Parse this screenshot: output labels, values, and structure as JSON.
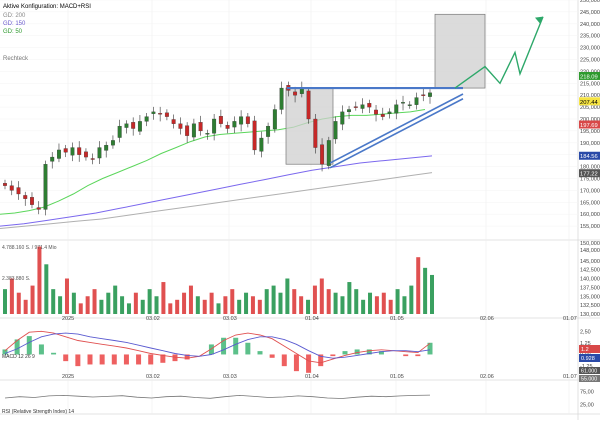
{
  "header": {
    "title": "Aktive Konfiguration: MACD+RSI",
    "ma_labels": [
      "GD: 200",
      "GD: 150",
      "GD: 50"
    ],
    "shape_label": "Rechteck"
  },
  "colors": {
    "up": "#2e7d32",
    "down": "#c62828",
    "ma50": "#5bd65b",
    "ma150": "#7b68ee",
    "ma200": "#b0b0b0",
    "trend": "#4a78c8",
    "macd": "#e05050",
    "signal": "#5a5ad0",
    "hist_pos": "#5cc08a",
    "hist_neg": "#ee6060",
    "vol_up": "#3aa060",
    "vol_down": "#e05050",
    "projection": "#2ea86a",
    "rect_fill": "#cfcfcf"
  },
  "chart_data": [
    {
      "type": "candlestick",
      "title": "Aktive Konfiguration: MACD+RSI",
      "x": [
        "2025",
        "03.02",
        "03.03",
        "01.04",
        "01.05",
        "02.06",
        "01.07"
      ],
      "ylim": [
        150,
        250
      ],
      "yticks": [
        155,
        160,
        165,
        170,
        175,
        180,
        185,
        190,
        195,
        200,
        205,
        210,
        215,
        220,
        225,
        230,
        235,
        240,
        245,
        250
      ],
      "close_path": [
        172,
        170,
        168.5,
        166.5,
        164,
        162,
        181,
        184,
        187,
        186,
        188,
        185,
        184,
        183,
        188,
        189,
        191,
        197,
        198,
        196,
        199,
        201,
        203,
        202,
        201,
        198,
        196,
        193,
        198,
        195,
        194,
        200,
        198,
        196,
        199,
        201,
        198,
        187,
        192,
        197,
        204,
        213,
        212,
        210,
        213,
        200,
        188,
        181,
        191,
        199,
        203,
        204,
        205,
        206,
        205,
        202,
        201,
        203,
        206,
        207,
        206,
        209,
        210,
        211
      ],
      "ma50_path": [
        160,
        160.5,
        161.5,
        163,
        165.5,
        168.5,
        172,
        175,
        177.5,
        180,
        182.5,
        185.5,
        188,
        190.5,
        192.5,
        193.5,
        194,
        194.5,
        195,
        195.5,
        196.5,
        198.5,
        200,
        201,
        201.5,
        201.5,
        202,
        202.5,
        203,
        204
      ],
      "ma150_path": [
        155,
        156,
        157.5,
        159,
        160.5,
        162.5,
        164.5,
        166.5,
        168.5,
        170.5,
        172.5,
        174.5,
        176.5,
        178.5,
        180,
        181.5,
        182.5,
        183.5,
        184.5
      ],
      "ma200_path": [
        154,
        155,
        156,
        157,
        158,
        159.5,
        161,
        162.5,
        164,
        165.5,
        167,
        168.5,
        170,
        171.5,
        173,
        174.5,
        176,
        177.5
      ],
      "price_labels": [
        "218.09",
        "207.44",
        "197.69",
        "184.56",
        "177.22"
      ],
      "rectangles": [
        {
          "role": "consolidation",
          "from": "01.04",
          "price_high": 213,
          "price_low": 181
        },
        {
          "role": "target",
          "price_high": 244,
          "price_low": 213
        }
      ],
      "projection_path": [
        213,
        222,
        215,
        228,
        219,
        243
      ]
    },
    {
      "type": "bar",
      "title": "Volume",
      "header_values": [
        "4.788.160 S. / 971.4 Mio",
        "2.383.880 S."
      ],
      "ylim": [
        130000,
        150000
      ],
      "yticks": [
        "130,000",
        "132,500",
        "135,000",
        "137,500",
        "140,000",
        "142,500",
        "145,000",
        "148,000",
        "150,000"
      ],
      "values": [
        137,
        140,
        136,
        134,
        138,
        149,
        144,
        137,
        135,
        140,
        136,
        133,
        135,
        137,
        134,
        136,
        138,
        135,
        133,
        136,
        134,
        137,
        135,
        139,
        133,
        134,
        136,
        138,
        135,
        134,
        136,
        133,
        135,
        137,
        134,
        136,
        135,
        134,
        137,
        138,
        136,
        140,
        137,
        135,
        134,
        138,
        140,
        137,
        136,
        135,
        139,
        137,
        134,
        136,
        135,
        136,
        134,
        137,
        135,
        138,
        146,
        143,
        141
      ]
    },
    {
      "type": "line",
      "title": "MACD (12,26,9)",
      "label": "MACD 12 26 9",
      "ylim": [
        -2,
        3.5
      ],
      "yticks": [
        "2,50",
        "1,25",
        "0,00",
        "-1,25"
      ],
      "badges": [
        "1.2",
        "0.928"
      ],
      "macd": [
        0.4,
        1.5,
        2.4,
        2.5,
        2.3,
        1.9,
        1.5,
        1.3,
        1.1,
        0.9,
        0.7,
        0.4,
        0.1,
        -0.1,
        -0.3,
        -0.4,
        -0.2,
        0.6,
        1.5,
        2.1,
        2.3,
        2.1,
        1.7,
        0.9,
        0.1,
        -0.7,
        -0.9,
        -0.5,
        -0.1,
        0.2,
        0.4,
        0.5,
        0.4,
        0.3,
        0.2,
        1.2
      ],
      "signal": [
        0.1,
        0.6,
        1.3,
        1.9,
        2.2,
        2.3,
        2.2,
        1.9,
        1.7,
        1.5,
        1.3,
        1.0,
        0.7,
        0.4,
        0.1,
        -0.1,
        -0.2,
        0.0,
        0.5,
        1.1,
        1.6,
        1.9,
        1.9,
        1.6,
        1.1,
        0.4,
        -0.2,
        -0.4,
        -0.3,
        -0.1,
        0.1,
        0.3,
        0.4,
        0.4,
        0.3,
        0.5
      ]
    },
    {
      "type": "line",
      "title": "RSI (Relative Strength Index), 14",
      "label": "RSI (Relative Strength Index) 14",
      "ylim": [
        0,
        100
      ],
      "yticks": [
        "75,00",
        "25,00"
      ],
      "badges": [
        "61.000",
        "55.000"
      ],
      "values": [
        50,
        55,
        52,
        58,
        60,
        57,
        54,
        56,
        59,
        53,
        50,
        55,
        57,
        52,
        49,
        55,
        60,
        56,
        52,
        54,
        58,
        55,
        50,
        48,
        53,
        57,
        55,
        58,
        60,
        61
      ]
    }
  ]
}
